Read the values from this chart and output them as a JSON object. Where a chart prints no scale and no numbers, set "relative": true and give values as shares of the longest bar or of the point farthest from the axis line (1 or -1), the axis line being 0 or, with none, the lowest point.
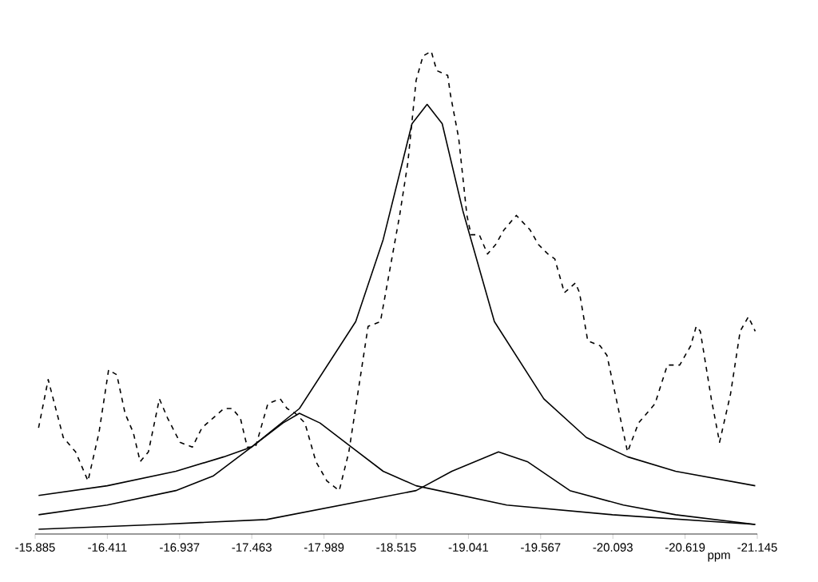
{
  "chart_data": {
    "type": "line",
    "xlabel": "ppm",
    "relative": true,
    "xlim": [
      -15.885,
      -21.145
    ],
    "xticks": [
      -15.885,
      -16.411,
      -16.937,
      -17.463,
      -17.989,
      -18.515,
      -19.041,
      -19.567,
      -20.093,
      -20.619,
      -21.145
    ],
    "series": [
      {
        "color": "#000000",
        "line_style": "dashed",
        "x": [
          -15.91,
          -15.98,
          -16.09,
          -16.18,
          -16.27,
          -16.35,
          -16.42,
          -16.48,
          -16.54,
          -16.6,
          -16.65,
          -16.71,
          -16.79,
          -16.85,
          -16.94,
          -17.03,
          -17.1,
          -17.18,
          -17.26,
          -17.32,
          -17.38,
          -17.43,
          -17.49,
          -17.58,
          -17.67,
          -17.72,
          -17.78,
          -17.85,
          -17.93,
          -18.01,
          -18.1,
          -18.17,
          -18.31,
          -18.4,
          -18.54,
          -18.6,
          -18.66,
          -18.71,
          -18.77,
          -18.81,
          -18.89,
          -18.91,
          -18.97,
          -19.03,
          -19.06,
          -19.12,
          -19.18,
          -19.24,
          -19.3,
          -19.39,
          -19.49,
          -19.55,
          -19.62,
          -19.67,
          -19.74,
          -19.82,
          -19.85,
          -19.91,
          -20.0,
          -20.05,
          -20.2,
          -20.28,
          -20.4,
          -20.49,
          -20.58,
          -20.66,
          -20.7,
          -20.73,
          -20.81,
          -20.87,
          -20.95,
          -21.02,
          -21.08,
          -21.13
        ],
        "values": [
          0.22,
          0.32,
          0.2,
          0.17,
          0.11,
          0.21,
          0.34,
          0.33,
          0.25,
          0.21,
          0.15,
          0.17,
          0.28,
          0.24,
          0.19,
          0.18,
          0.22,
          0.24,
          0.26,
          0.26,
          0.24,
          0.18,
          0.18,
          0.27,
          0.28,
          0.26,
          0.25,
          0.23,
          0.15,
          0.11,
          0.09,
          0.17,
          0.43,
          0.44,
          0.66,
          0.77,
          0.94,
          0.99,
          1.0,
          0.96,
          0.95,
          0.91,
          0.82,
          0.66,
          0.62,
          0.62,
          0.58,
          0.6,
          0.63,
          0.66,
          0.63,
          0.6,
          0.58,
          0.57,
          0.5,
          0.52,
          0.5,
          0.4,
          0.39,
          0.37,
          0.17,
          0.23,
          0.27,
          0.35,
          0.35,
          0.39,
          0.43,
          0.42,
          0.28,
          0.19,
          0.29,
          0.42,
          0.45,
          0.42
        ]
      },
      {
        "color": "#000000",
        "line_style": "solid",
        "x": [
          -15.91,
          -16.41,
          -16.91,
          -17.18,
          -17.46,
          -17.81,
          -18.22,
          -18.42,
          -18.63,
          -18.74,
          -18.85,
          -19.0,
          -19.23,
          -19.59,
          -19.9,
          -20.2,
          -20.55,
          -21.13
        ],
        "values": [
          0.04,
          0.06,
          0.09,
          0.12,
          0.18,
          0.26,
          0.44,
          0.61,
          0.85,
          0.89,
          0.85,
          0.67,
          0.44,
          0.28,
          0.2,
          0.16,
          0.13,
          0.1
        ]
      },
      {
        "color": "#000000",
        "line_style": "solid",
        "x": [
          -15.91,
          -16.41,
          -16.91,
          -17.26,
          -17.46,
          -17.69,
          -17.81,
          -17.96,
          -18.19,
          -18.42,
          -18.66,
          -19.32,
          -20.09,
          -21.13
        ],
        "values": [
          0.08,
          0.1,
          0.13,
          0.16,
          0.18,
          0.23,
          0.25,
          0.23,
          0.18,
          0.13,
          0.1,
          0.06,
          0.04,
          0.02
        ]
      },
      {
        "color": "#000000",
        "line_style": "solid",
        "x": [
          -15.91,
          -16.79,
          -17.57,
          -18.66,
          -18.92,
          -19.26,
          -19.47,
          -19.78,
          -20.17,
          -20.55,
          -21.13
        ],
        "values": [
          0.01,
          0.02,
          0.03,
          0.09,
          0.13,
          0.17,
          0.15,
          0.09,
          0.06,
          0.04,
          0.02
        ]
      }
    ]
  }
}
